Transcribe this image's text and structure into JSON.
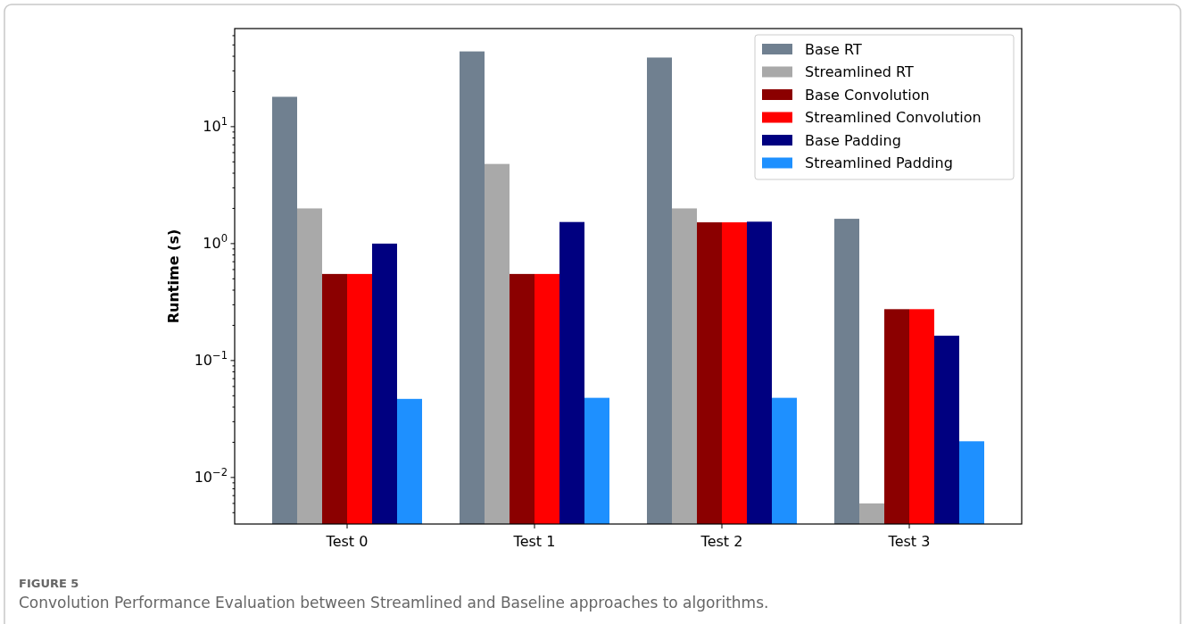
{
  "chart_data": {
    "type": "bar",
    "categories": [
      "Test 0",
      "Test 1",
      "Test 2",
      "Test 3"
    ],
    "series": [
      {
        "name": "Base RT",
        "color": "#708090",
        "values": [
          18,
          44,
          39,
          1.63
        ]
      },
      {
        "name": "Streamlined RT",
        "color": "#a9a9a9",
        "values": [
          2.0,
          4.8,
          2.0,
          0.006
        ]
      },
      {
        "name": "Base Convolution",
        "color": "#8b0000",
        "values": [
          0.55,
          0.55,
          1.52,
          0.275
        ]
      },
      {
        "name": "Streamlined Convolution",
        "color": "#ff0000",
        "values": [
          0.55,
          0.55,
          1.52,
          0.275
        ]
      },
      {
        "name": "Base Padding",
        "color": "#000080",
        "values": [
          1.0,
          1.53,
          1.54,
          0.163
        ]
      },
      {
        "name": "Streamlined Padding",
        "color": "#1e90ff",
        "values": [
          0.047,
          0.048,
          0.048,
          0.0204
        ]
      }
    ],
    "log": true,
    "ylim": [
      0.004,
      69
    ],
    "yticks": [
      {
        "value": 0.005,
        "label": null
      },
      {
        "value": 0.006,
        "label": null
      },
      {
        "value": 0.007,
        "label": null
      },
      {
        "value": 0.008,
        "label": null
      },
      {
        "value": 0.009,
        "label": null
      },
      {
        "value": 0.01,
        "label": "10$^{−2}$"
      },
      {
        "value": 0.02,
        "label": null
      },
      {
        "value": 0.03,
        "label": null
      },
      {
        "value": 0.04,
        "label": null
      },
      {
        "value": 0.05,
        "label": null
      },
      {
        "value": 0.06,
        "label": null
      },
      {
        "value": 0.07,
        "label": null
      },
      {
        "value": 0.08,
        "label": null
      },
      {
        "value": 0.09,
        "label": null
      },
      {
        "value": 0.1,
        "label": "10$^{−1}$"
      },
      {
        "value": 0.2,
        "label": null
      },
      {
        "value": 0.3,
        "label": null
      },
      {
        "value": 0.4,
        "label": null
      },
      {
        "value": 0.5,
        "label": null
      },
      {
        "value": 0.6,
        "label": null
      },
      {
        "value": 0.7,
        "label": null
      },
      {
        "value": 0.8,
        "label": null
      },
      {
        "value": 0.9,
        "label": null
      },
      {
        "value": 1,
        "label": "10$^{0}$"
      },
      {
        "value": 2,
        "label": null
      },
      {
        "value": 3,
        "label": null
      },
      {
        "value": 4,
        "label": null
      },
      {
        "value": 5,
        "label": null
      },
      {
        "value": 6,
        "label": null
      },
      {
        "value": 7,
        "label": null
      },
      {
        "value": 8,
        "label": null
      },
      {
        "value": 9,
        "label": null
      },
      {
        "value": 10,
        "label": "10$^{1}$"
      },
      {
        "value": 20,
        "label": null
      },
      {
        "value": 30,
        "label": null
      },
      {
        "value": 40,
        "label": null
      },
      {
        "value": 50,
        "label": null
      },
      {
        "value": 60,
        "label": null
      }
    ],
    "ylabel": "Runtime (s)",
    "legend": "top right",
    "grid": false,
    "annotations": [
      "FIGURE 5",
      "Convolution Performance Evaluation between Streamlined and Baseline approaches to algorithms."
    ]
  }
}
